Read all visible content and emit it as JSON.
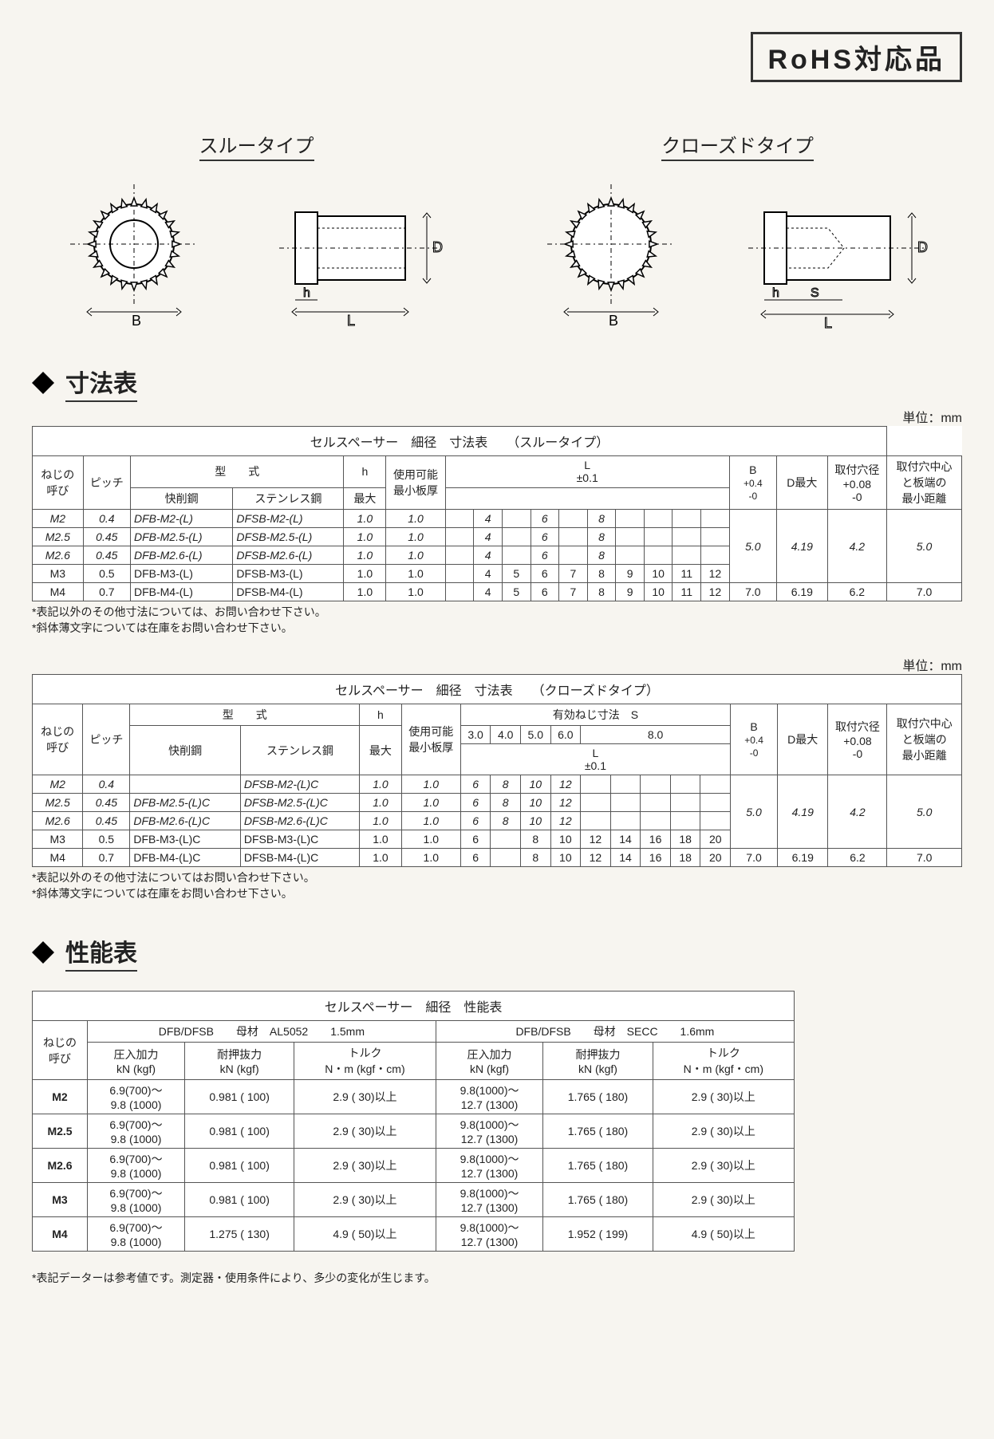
{
  "rohs_label": "RoHS対応品",
  "type_labels": {
    "through": "スルータイプ",
    "closed": "クローズドタイプ"
  },
  "dim_labels": {
    "B": "B",
    "L": "L",
    "h": "h",
    "D": "D",
    "S": "S"
  },
  "section_dim_title": "寸法表",
  "section_perf_title": "性能表",
  "unit_text": "単位：mm",
  "table1": {
    "title": "セルスペーサー　細径　寸法表　　（スルータイプ）",
    "headers": {
      "neji": "ねじの\n呼び",
      "pitch": "ピッチ",
      "model": "型　　式",
      "model_cut": "快削鋼",
      "model_sus": "ステンレス鋼",
      "h": "h",
      "h_max": "最大",
      "plate": "使用可能\n最小板厚",
      "L": "L",
      "L_tol": "±0.1",
      "B": "B",
      "B_tol": "+0.4\n-0",
      "D": "D最大",
      "hole": "取付穴径\n+0.08\n-0",
      "edge": "取付穴中心\nと板端の\n最小距離"
    },
    "rows": [
      {
        "neji": "M2",
        "pitch": "0.4",
        "cut": "DFB-M2-(L)",
        "sus": "DFSB-M2-(L)",
        "h": "1.0",
        "plate": "1.0",
        "L": [
          "",
          "4",
          "",
          "6",
          "",
          "8",
          "",
          "",
          "",
          ""
        ],
        "B": "",
        "D": "",
        "hole": "",
        "edge": "",
        "italic": true
      },
      {
        "neji": "M2.5",
        "pitch": "0.45",
        "cut": "DFB-M2.5-(L)",
        "sus": "DFSB-M2.5-(L)",
        "h": "1.0",
        "plate": "1.0",
        "L": [
          "",
          "4",
          "",
          "6",
          "",
          "8",
          "",
          "",
          "",
          ""
        ],
        "B": "5.0",
        "D": "4.19",
        "hole": "4.2",
        "edge": "5.0",
        "italic": true
      },
      {
        "neji": "M2.6",
        "pitch": "0.45",
        "cut": "DFB-M2.6-(L)",
        "sus": "DFSB-M2.6-(L)",
        "h": "1.0",
        "plate": "1.0",
        "L": [
          "",
          "4",
          "",
          "6",
          "",
          "8",
          "",
          "",
          "",
          ""
        ],
        "B": "",
        "D": "",
        "hole": "",
        "edge": "",
        "italic": true
      },
      {
        "neji": "M3",
        "pitch": "0.5",
        "cut": "DFB-M3-(L)",
        "sus": "DFSB-M3-(L)",
        "h": "1.0",
        "plate": "1.0",
        "L": [
          "",
          "4",
          "5",
          "6",
          "7",
          "8",
          "9",
          "10",
          "11",
          "12"
        ],
        "B": "",
        "D": "",
        "hole": "",
        "edge": "",
        "italic": false
      },
      {
        "neji": "M4",
        "pitch": "0.7",
        "cut": "DFB-M4-(L)",
        "sus": "DFSB-M4-(L)",
        "h": "1.0",
        "plate": "1.0",
        "L": [
          "",
          "4",
          "5",
          "6",
          "7",
          "8",
          "9",
          "10",
          "11",
          "12"
        ],
        "B": "7.0",
        "D": "6.19",
        "hole": "6.2",
        "edge": "7.0",
        "italic": false
      }
    ],
    "merged_bd": {
      "rows_1_3": {
        "B": "5.0",
        "D": "4.19",
        "hole": "4.2",
        "edge": "5.0"
      }
    },
    "notes": "*表記以外のその他寸法については、お問い合わせ下さい。\n*斜体薄文字については在庫をお問い合わせ下さい。"
  },
  "table2": {
    "title": "セルスペーサー　細径　寸法表　　（クローズドタイプ）",
    "headers": {
      "neji": "ねじの\n呼び",
      "pitch": "ピッチ",
      "model": "型　　式",
      "model_cut": "快削鋼",
      "model_sus": "ステンレス鋼",
      "h": "h",
      "h_max": "最大",
      "plate": "使用可能\n最小板厚",
      "S": "有効ねじ寸法　S",
      "S_sub": [
        "3.0",
        "4.0",
        "5.0",
        "6.0",
        "8.0"
      ],
      "L": "L",
      "L_tol": "±0.1",
      "B": "B",
      "B_tol": "+0.4\n-0",
      "D": "D最大",
      "hole": "取付穴径\n+0.08\n-0",
      "edge": "取付穴中心\nと板端の\n最小距離"
    },
    "rows": [
      {
        "neji": "M2",
        "pitch": "0.4",
        "cut": "",
        "sus": "DFSB-M2-(L)C",
        "h": "1.0",
        "plate": "1.0",
        "L": [
          "6",
          "8",
          "10",
          "12",
          "",
          "",
          "",
          "",
          ""
        ],
        "italic": true
      },
      {
        "neji": "M2.5",
        "pitch": "0.45",
        "cut": "DFB-M2.5-(L)C",
        "sus": "DFSB-M2.5-(L)C",
        "h": "1.0",
        "plate": "1.0",
        "L": [
          "6",
          "8",
          "10",
          "12",
          "",
          "",
          "",
          "",
          ""
        ],
        "italic": true
      },
      {
        "neji": "M2.6",
        "pitch": "0.45",
        "cut": "DFB-M2.6-(L)C",
        "sus": "DFSB-M2.6-(L)C",
        "h": "1.0",
        "plate": "1.0",
        "L": [
          "6",
          "8",
          "10",
          "12",
          "",
          "",
          "",
          "",
          ""
        ],
        "italic": true
      },
      {
        "neji": "M3",
        "pitch": "0.5",
        "cut": "DFB-M3-(L)C",
        "sus": "DFSB-M3-(L)C",
        "h": "1.0",
        "plate": "1.0",
        "L": [
          "6",
          "",
          "8",
          "10",
          "12",
          "14",
          "16",
          "18",
          "20"
        ],
        "italic": false
      },
      {
        "neji": "M4",
        "pitch": "0.7",
        "cut": "DFB-M4-(L)C",
        "sus": "DFSB-M4-(L)C",
        "h": "1.0",
        "plate": "1.0",
        "L": [
          "6",
          "",
          "8",
          "10",
          "12",
          "14",
          "16",
          "18",
          "20"
        ],
        "italic": false
      }
    ],
    "bd1": {
      "B": "5.0",
      "D": "4.19",
      "hole": "4.2",
      "edge": "5.0"
    },
    "bd2": {
      "B": "7.0",
      "D": "6.19",
      "hole": "6.2",
      "edge": "7.0"
    },
    "notes": "*表記以外のその他寸法についてはお問い合わせ下さい。\n*斜体薄文字については在庫をお問い合わせ下さい。"
  },
  "table3": {
    "title": "セルスペーサー　細径　性能表",
    "left_header": "DFB/DFSB　　母材　AL5052　　1.5mm",
    "right_header": "DFB/DFSB　　母材　SECC　　1.6mm",
    "headers": {
      "neji": "ねじの\n呼び",
      "push": "圧入加力\nkN (kgf)",
      "pull": "耐押抜力\nkN (kgf)",
      "torque": "トルク\nN・m (kgf・cm)"
    },
    "rows": [
      {
        "neji": "M2",
        "l_push": "6.9(700)～\n9.8 (1000)",
        "l_pull": "0.981 ( 100)",
        "l_torque": "2.9 ( 30)以上",
        "r_push": "9.8(1000)～\n12.7 (1300)",
        "r_pull": "1.765 ( 180)",
        "r_torque": "2.9 ( 30)以上"
      },
      {
        "neji": "M2.5",
        "l_push": "6.9(700)～\n9.8 (1000)",
        "l_pull": "0.981 ( 100)",
        "l_torque": "2.9 ( 30)以上",
        "r_push": "9.8(1000)～\n12.7 (1300)",
        "r_pull": "1.765 ( 180)",
        "r_torque": "2.9 ( 30)以上"
      },
      {
        "neji": "M2.6",
        "l_push": "6.9(700)～\n9.8 (1000)",
        "l_pull": "0.981 ( 100)",
        "l_torque": "2.9 ( 30)以上",
        "r_push": "9.8(1000)～\n12.7 (1300)",
        "r_pull": "1.765 ( 180)",
        "r_torque": "2.9 ( 30)以上"
      },
      {
        "neji": "M3",
        "l_push": "6.9(700)～\n9.8 (1000)",
        "l_pull": "0.981 ( 100)",
        "l_torque": "2.9 ( 30)以上",
        "r_push": "9.8(1000)～\n12.7 (1300)",
        "r_pull": "1.765 ( 180)",
        "r_torque": "2.9 ( 30)以上"
      },
      {
        "neji": "M4",
        "l_push": "6.9(700)～\n9.8 (1000)",
        "l_pull": "1.275 ( 130)",
        "l_torque": "4.9 ( 50)以上",
        "r_push": "9.8(1000)～\n12.7 (1300)",
        "r_pull": "1.952 ( 199)",
        "r_torque": "4.9 ( 50)以上"
      }
    ],
    "notes": "*表記データーは参考値です。測定器・使用条件により、多少の変化が生じます。"
  },
  "colors": {
    "bg": "#f7f5f0",
    "border": "#555555",
    "text": "#222222"
  }
}
